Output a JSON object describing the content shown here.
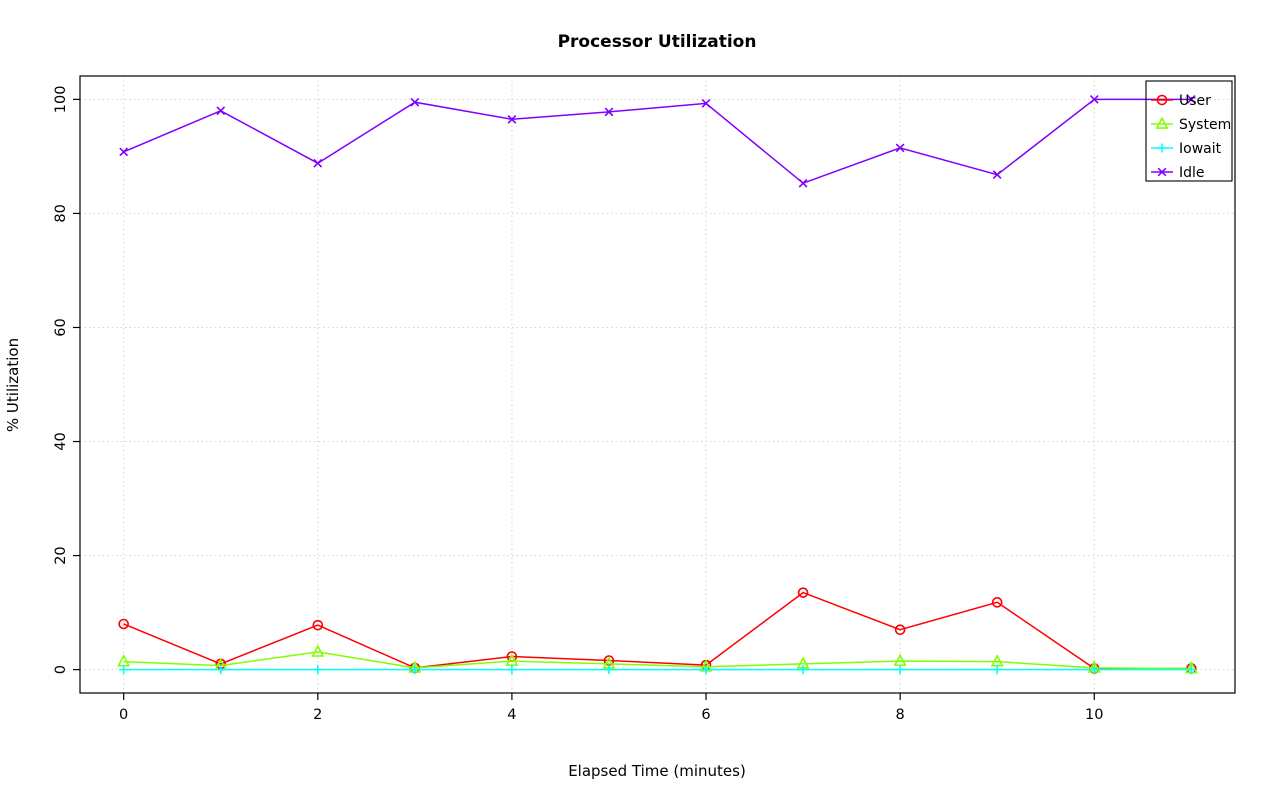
{
  "chart_data": {
    "type": "line",
    "title": "Processor Utilization",
    "xlabel": "Elapsed Time (minutes)",
    "ylabel": "% Utilization",
    "x": [
      0,
      1,
      2,
      3,
      4,
      5,
      6,
      7,
      8,
      9,
      10,
      11
    ],
    "xticks": [
      0,
      2,
      4,
      6,
      8,
      10
    ],
    "yticks": [
      0,
      20,
      40,
      60,
      80,
      100
    ],
    "xlim": [
      -0.45,
      11.45
    ],
    "ylim": [
      -4.1,
      104.1
    ],
    "grid": true,
    "grid_color": "#d3d3d3",
    "axis_color": "#000000",
    "background_color": "#ffffff",
    "legend": {
      "position": "top-right",
      "border": true
    },
    "series": [
      {
        "name": "User",
        "color": "#FF0000",
        "marker": "circle",
        "values": [
          8,
          1,
          7.8,
          0.3,
          2.3,
          1.6,
          0.8,
          13.5,
          7,
          11.8,
          0.2,
          0.2
        ]
      },
      {
        "name": "System",
        "color": "#80FF00",
        "marker": "triangle",
        "values": [
          1.4,
          0.7,
          3.1,
          0.3,
          1.5,
          1,
          0.5,
          1,
          1.5,
          1.4,
          0.3,
          0.2
        ]
      },
      {
        "name": "Iowait",
        "color": "#00FFFF",
        "marker": "plus",
        "values": [
          0,
          0,
          0,
          0,
          0,
          0,
          0,
          0,
          0,
          0,
          0,
          0
        ]
      },
      {
        "name": "Idle",
        "color": "#8000FF",
        "marker": "x",
        "values": [
          90.8,
          98,
          88.8,
          99.5,
          96.5,
          97.8,
          99.3,
          85.3,
          91.5,
          86.8,
          100,
          100
        ]
      }
    ]
  }
}
